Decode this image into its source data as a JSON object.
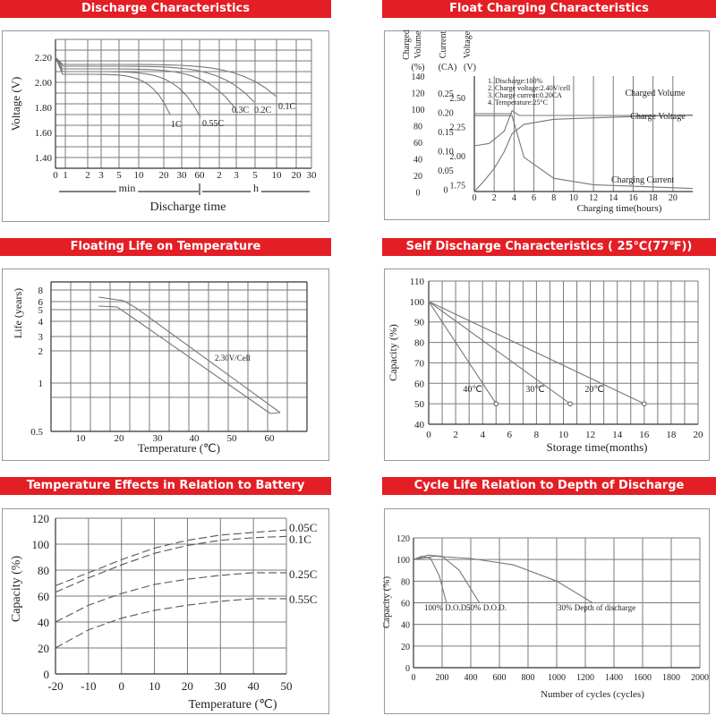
{
  "colors": {
    "header_bg": "#e31e24",
    "header_text": "#ffffff",
    "grid": "#7a7a7a",
    "curve": "#777777"
  },
  "headers": {
    "discharge": "Discharge Characteristics",
    "float": "Float Charging Characteristics",
    "floating_life": "Floating Life on Temperature",
    "self_discharge": "Self Discharge Characteristics ( 25℃(77℉))",
    "temp_effects": "Temperature Effects in Relation to Battery Capacity",
    "cycle_life": "Cycle Life Relation to Depth of Discharge"
  },
  "chart_data": [
    {
      "id": "discharge",
      "type": "line",
      "title": "Discharge Characteristics",
      "ylabel": "Voltage (V)",
      "xlabel": "Discharge time",
      "ylim": [
        1.4,
        2.2
      ],
      "y_ticks": [
        "2.20",
        "2.00",
        "1.80",
        "1.60",
        "1.40"
      ],
      "x_ticks_min": [
        "0",
        "1",
        "2",
        "3",
        "5",
        "10",
        "20",
        "30",
        "60"
      ],
      "x_ticks_h": [
        "2",
        "3",
        "5",
        "10",
        "20",
        "30"
      ],
      "unit_min": "min",
      "unit_h": "h",
      "series": [
        {
          "name": "1C",
          "end_minutes": 25,
          "end_voltage": 1.6
        },
        {
          "name": "0.55C",
          "end_minutes": 60,
          "end_voltage": 1.6
        },
        {
          "name": "0.3C",
          "end_minutes": 170,
          "end_voltage": 1.72
        },
        {
          "name": "0.2C",
          "end_minutes": 290,
          "end_voltage": 1.75
        },
        {
          "name": "0.1C",
          "end_minutes": 600,
          "end_voltage": 1.8
        }
      ]
    },
    {
      "id": "float",
      "type": "line",
      "title": "Float Charging Characteristics",
      "xlabel": "Charging time(hours)",
      "x_ticks": [
        "0",
        "2",
        "4",
        "6",
        "8",
        "10",
        "12",
        "14",
        "16",
        "18",
        "20"
      ],
      "ylabel_charged": "Charged Volume (%)",
      "ylabel_current": "Current (CA)",
      "ylabel_voltage": "Voltage (V)",
      "head_charged": "Charged\nVolume",
      "head_current": "Current",
      "head_voltage": "Voltage",
      "unit_charged": "(%)",
      "unit_current": "(CA)",
      "unit_voltage": "(V)",
      "charged_ticks": [
        "140",
        "120",
        "100",
        "80",
        "60",
        "40",
        "20",
        "0"
      ],
      "current_ticks": [
        "0.25",
        "0.20",
        "0.15",
        "0.10",
        "0.05",
        "0"
      ],
      "voltage_ticks": [
        "2.50",
        "2.25",
        "2.00",
        "1.75"
      ],
      "notes": [
        "1. Discharge:100%",
        "2. Charge voltage:2.40V/cell",
        "3. Charge current:0.20CA",
        "4. Temperature:25°C"
      ],
      "series": [
        {
          "name": "Charged Volume",
          "points": [
            [
              0,
              0
            ],
            [
              1,
              15
            ],
            [
              2,
              32
            ],
            [
              3,
              55
            ],
            [
              3.8,
              80
            ],
            [
              5,
              93
            ],
            [
              8,
              100
            ],
            [
              14,
              103
            ],
            [
              22,
              106
            ]
          ]
        },
        {
          "name": "Charge Voltage",
          "points": [
            [
              0,
              2.11
            ],
            [
              1.5,
              2.13
            ],
            [
              3,
              2.23
            ],
            [
              3.8,
              2.4
            ],
            [
              4.5,
              2.36
            ],
            [
              22,
              2.36
            ]
          ]
        },
        {
          "name": "Charging Current",
          "points": [
            [
              0,
              0.2
            ],
            [
              3.8,
              0.2
            ],
            [
              5,
              0.09
            ],
            [
              8,
              0.035
            ],
            [
              12,
              0.018
            ],
            [
              22,
              0.008
            ]
          ]
        }
      ]
    },
    {
      "id": "floating_life",
      "type": "line",
      "title": "Floating Life on Temperature",
      "ylabel": "Life (years)",
      "xlabel": "Temperature (℃)",
      "y_ticks": [
        "8",
        "6",
        "5",
        "4",
        "3",
        "2",
        "1",
        "0.5"
      ],
      "x_ticks": [
        "10",
        "20",
        "30",
        "40",
        "50",
        "60"
      ],
      "annotation": "2.30V/Cell",
      "upper": [
        [
          15,
          6.5
        ],
        [
          20,
          6.1
        ],
        [
          25,
          5.0
        ],
        [
          63,
          0.6
        ]
      ],
      "lower": [
        [
          15,
          5.4
        ],
        [
          20,
          5.3
        ],
        [
          25,
          4.3
        ],
        [
          60,
          0.6
        ]
      ]
    },
    {
      "id": "self_discharge",
      "type": "line",
      "title": "Self Discharge Characteristics",
      "ylabel": "Capacity (%)",
      "xlabel": "Storage time(months)",
      "ylim": [
        40,
        110
      ],
      "xlim": [
        0,
        20
      ],
      "y_ticks": [
        "110",
        "100",
        "90",
        "80",
        "70",
        "60",
        "50",
        "40"
      ],
      "x_ticks": [
        "0",
        "2",
        "4",
        "6",
        "8",
        "10",
        "12",
        "14",
        "16",
        "18",
        "20"
      ],
      "series": [
        {
          "name": "40℃",
          "points": [
            [
              0,
              100
            ],
            [
              5,
              50
            ]
          ]
        },
        {
          "name": "30℃",
          "points": [
            [
              0,
              100
            ],
            [
              10.5,
              50
            ]
          ]
        },
        {
          "name": "20℃",
          "points": [
            [
              0,
              100
            ],
            [
              16,
              50
            ]
          ]
        }
      ]
    },
    {
      "id": "temp_effects",
      "type": "line",
      "title": "Temperature Effects in Relation to Battery Capacity",
      "ylabel": "Capacity (%)",
      "xlabel": "Temperature (℃)",
      "ylim": [
        0,
        120
      ],
      "xlim": [
        -20,
        50
      ],
      "y_ticks": [
        "120",
        "100",
        "80",
        "60",
        "40",
        "20",
        "0"
      ],
      "x_ticks": [
        "-20",
        "-10",
        "0",
        "10",
        "20",
        "30",
        "40",
        "50"
      ],
      "series": [
        {
          "name": "0.05C",
          "points": [
            [
              -20,
              68
            ],
            [
              -10,
              78
            ],
            [
              0,
              88
            ],
            [
              10,
              97
            ],
            [
              20,
              103
            ],
            [
              30,
              107
            ],
            [
              40,
              109
            ],
            [
              50,
              111
            ]
          ]
        },
        {
          "name": "0.1C",
          "points": [
            [
              -20,
              63
            ],
            [
              -10,
              74
            ],
            [
              0,
              84
            ],
            [
              10,
              93
            ],
            [
              20,
              99
            ],
            [
              30,
              103
            ],
            [
              40,
              105
            ],
            [
              50,
              106
            ]
          ]
        },
        {
          "name": "0.25C",
          "points": [
            [
              -20,
              40
            ],
            [
              -10,
              53
            ],
            [
              0,
              62
            ],
            [
              10,
              69
            ],
            [
              20,
              73
            ],
            [
              30,
              76
            ],
            [
              40,
              78
            ],
            [
              50,
              78
            ]
          ]
        },
        {
          "name": "0.55C",
          "points": [
            [
              -20,
              20
            ],
            [
              -10,
              34
            ],
            [
              0,
              43
            ],
            [
              10,
              49
            ],
            [
              20,
              53
            ],
            [
              30,
              56
            ],
            [
              40,
              58
            ],
            [
              50,
              58
            ]
          ]
        }
      ]
    },
    {
      "id": "cycle_life",
      "type": "line",
      "title": "Cycle Life Relation to Depth of Discharge",
      "ylabel": "Capacity (%)",
      "xlabel": "Number of cycles (cycles)",
      "ylim": [
        0,
        120
      ],
      "xlim": [
        0,
        2000
      ],
      "y_ticks": [
        "120",
        "100",
        "80",
        "60",
        "40",
        "20",
        "0"
      ],
      "x_ticks": [
        "0",
        "200",
        "400",
        "600",
        "800",
        "1000",
        "1200",
        "1400",
        "1600",
        "1800",
        "2000"
      ],
      "series": [
        {
          "name": "100% D.O.D.",
          "points": [
            [
              0,
              100
            ],
            [
              60,
              103
            ],
            [
              120,
              101
            ],
            [
              180,
              85
            ],
            [
              230,
              60
            ]
          ]
        },
        {
          "name": "50% D.O.D.",
          "points": [
            [
              0,
              100
            ],
            [
              100,
              104
            ],
            [
              200,
              103
            ],
            [
              320,
              90
            ],
            [
              460,
              60
            ]
          ]
        },
        {
          "name": "30% Depth of discharge",
          "points": [
            [
              0,
              100
            ],
            [
              150,
              103
            ],
            [
              400,
              101
            ],
            [
              700,
              95
            ],
            [
              1000,
              80
            ],
            [
              1250,
              60
            ]
          ]
        }
      ]
    }
  ]
}
